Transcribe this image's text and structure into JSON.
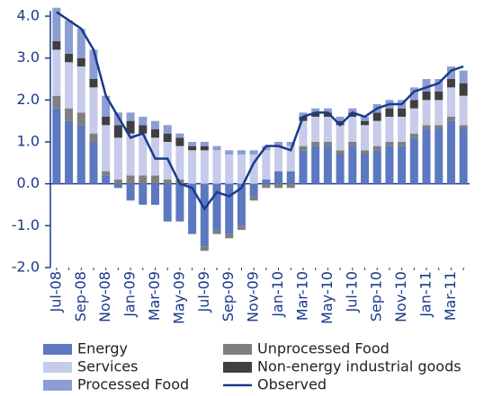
{
  "chart_data": {
    "type": "bar",
    "categories": [
      "Jul-08",
      null,
      "Sep-08",
      null,
      "Nov-08",
      null,
      "Jan-09",
      null,
      "Mar-09",
      null,
      "May-09",
      null,
      "Jul-09",
      null,
      "Sep-09",
      null,
      "Nov-09",
      null,
      "Jan-10",
      null,
      "Mar-10",
      null,
      "May-10",
      null,
      "Jul-10",
      null,
      "Sep-10",
      null,
      "Nov-10",
      null,
      "Jan-11",
      null,
      "Mar-11",
      null
    ],
    "series": [
      {
        "name": "Energy",
        "color": "#5b78c0",
        "values": [
          1.8,
          1.5,
          1.4,
          1.0,
          0.2,
          -0.1,
          -0.4,
          -0.5,
          -0.5,
          -0.9,
          -0.9,
          -1.2,
          -1.5,
          -1.1,
          -1.2,
          -1.0,
          -0.3,
          0.1,
          0.3,
          0.3,
          0.8,
          0.9,
          0.9,
          0.7,
          0.9,
          0.7,
          0.8,
          0.9,
          0.9,
          1.1,
          1.3,
          1.3,
          1.5,
          1.3
        ]
      },
      {
        "name": "Unprocessed Food",
        "color": "#7f7f7f",
        "values": [
          0.3,
          0.3,
          0.3,
          0.2,
          0.1,
          0.1,
          0.2,
          0.2,
          0.2,
          0.1,
          0.1,
          0.0,
          -0.1,
          -0.1,
          -0.1,
          -0.1,
          -0.1,
          -0.1,
          -0.1,
          -0.1,
          0.1,
          0.1,
          0.1,
          0.1,
          0.1,
          0.1,
          0.1,
          0.1,
          0.1,
          0.1,
          0.1,
          0.1,
          0.1,
          0.1
        ]
      },
      {
        "name": "Services",
        "color": "#c6cbe9",
        "values": [
          1.1,
          1.1,
          1.1,
          1.1,
          1.1,
          1.0,
          1.0,
          1.0,
          0.9,
          0.9,
          0.8,
          0.8,
          0.8,
          0.8,
          0.7,
          0.7,
          0.7,
          0.7,
          0.6,
          0.6,
          0.6,
          0.6,
          0.6,
          0.6,
          0.6,
          0.6,
          0.6,
          0.6,
          0.6,
          0.6,
          0.6,
          0.6,
          0.7,
          0.7
        ]
      },
      {
        "name": "Non-energy industrial goods",
        "color": "#3f3f3f",
        "values": [
          0.2,
          0.2,
          0.2,
          0.2,
          0.2,
          0.3,
          0.3,
          0.2,
          0.2,
          0.2,
          0.2,
          0.1,
          0.1,
          0.0,
          0.0,
          0.0,
          0.0,
          0.0,
          0.0,
          0.0,
          0.1,
          0.1,
          0.1,
          0.1,
          0.1,
          0.1,
          0.2,
          0.2,
          0.2,
          0.2,
          0.2,
          0.2,
          0.2,
          0.3
        ]
      },
      {
        "name": "Processed Food",
        "color": "#8c9dd3",
        "values": [
          0.8,
          0.8,
          0.7,
          0.7,
          0.5,
          0.3,
          0.2,
          0.2,
          0.2,
          0.2,
          0.1,
          0.1,
          0.1,
          0.1,
          0.1,
          0.1,
          0.1,
          0.1,
          0.1,
          0.1,
          0.1,
          0.1,
          0.1,
          0.1,
          0.1,
          0.1,
          0.2,
          0.2,
          0.2,
          0.3,
          0.3,
          0.3,
          0.3,
          0.3
        ]
      },
      {
        "name": "Observed",
        "type": "line",
        "color": "#1a3a8a",
        "values": [
          4.1,
          3.9,
          3.7,
          3.2,
          2.1,
          1.6,
          1.1,
          1.2,
          0.6,
          0.6,
          0.0,
          -0.1,
          -0.6,
          -0.2,
          -0.3,
          -0.1,
          0.5,
          0.9,
          0.9,
          0.8,
          1.6,
          1.7,
          1.7,
          1.4,
          1.7,
          1.6,
          1.8,
          1.9,
          1.9,
          2.2,
          2.3,
          2.4,
          2.7,
          2.8
        ]
      }
    ],
    "ylim": [
      -2,
      4
    ],
    "yticks": [
      {
        "value": -2,
        "label": "-2.0"
      },
      {
        "value": -1,
        "label": "-1.0"
      },
      {
        "value": 0,
        "label": "0.0"
      },
      {
        "value": 1,
        "label": "1.0"
      },
      {
        "value": 2,
        "label": "2.0"
      },
      {
        "value": 3,
        "label": "3.0"
      },
      {
        "value": 4,
        "label": "4.0"
      }
    ]
  }
}
